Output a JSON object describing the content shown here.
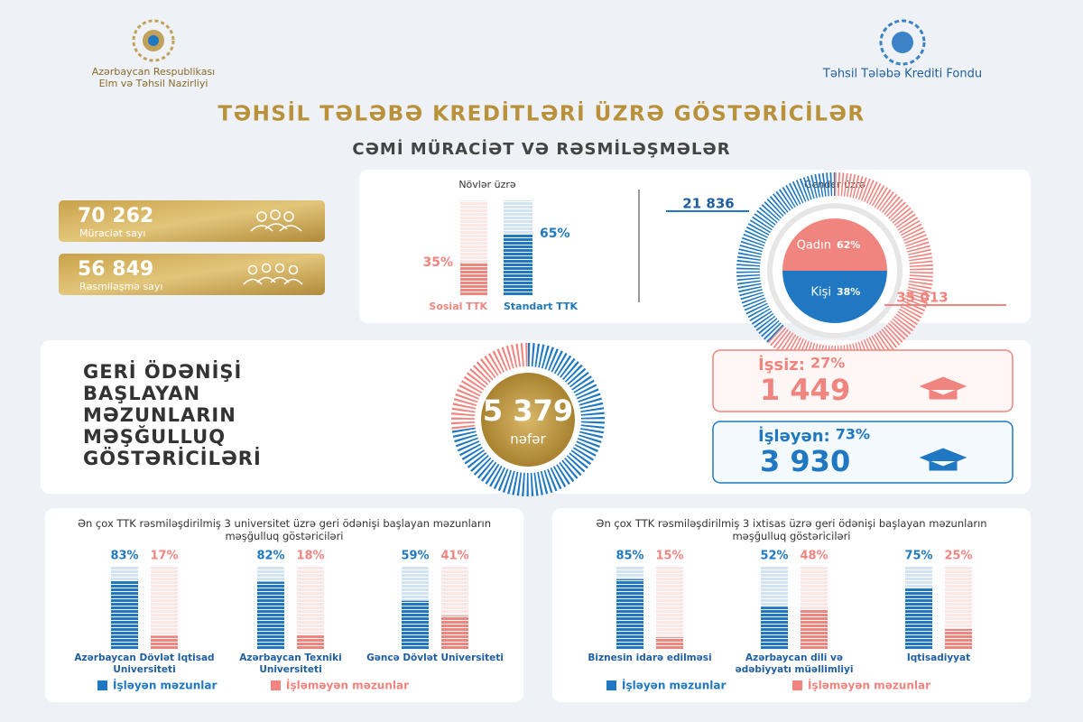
{
  "header": {
    "left_org": [
      "Azərbaycan Respublikası",
      "Elm və Təhsil Nazirliyi"
    ],
    "right_org": "Təhsil Tələbə Krediti Fondu",
    "title": "TƏHSİL TƏLƏBƏ KREDİTLƏRİ ÜZRƏ GÖSTƏRİCİLƏR",
    "subtitle": "CƏMİ MÜRACİƏT VƏ RƏSMİLƏŞMƏLƏR"
  },
  "stats": [
    {
      "value": "70 262",
      "label": "Müraciət sayı"
    },
    {
      "value": "56 849",
      "label": "Rəsmiləşmə sayı"
    }
  ],
  "chart_data": [
    {
      "type": "bar",
      "title": "Növlər üzrə",
      "categories": [
        "Sosial TTK",
        "Standart TTK"
      ],
      "values": [
        35,
        65
      ],
      "value_labels": [
        "35%",
        "65%"
      ],
      "colors": [
        "#f0847f",
        "#1f78c1"
      ],
      "ylim": [
        0,
        100
      ]
    },
    {
      "type": "donut",
      "title": "Gender üzrə",
      "categories": [
        "Qadın",
        "Kişi"
      ],
      "values": [
        62,
        38
      ],
      "value_labels": [
        "62%",
        "38%"
      ],
      "count_labels": [
        "35 013",
        "21 836"
      ],
      "colors": [
        "#f0847f",
        "#1f78c1"
      ]
    },
    {
      "type": "gauge",
      "title": [
        "GERİ ÖDƏNİŞİ",
        "BAŞLAYAN",
        "MƏZUNLARIN",
        "MƏŞĞULLUQ",
        "GÖSTƏRİCİLƏRİ"
      ],
      "total_label": "5 379",
      "unit": "nəfər",
      "categories": [
        "İşsiz:",
        "İşləyən:"
      ],
      "values": [
        27,
        73
      ],
      "value_labels": [
        "27%",
        "73%"
      ],
      "count_labels": [
        "1 449",
        "3 930"
      ],
      "colors": [
        "#f0847f",
        "#1f78c1"
      ]
    },
    {
      "type": "bar",
      "title": "Ən çox TTK rəsmiləşdirilmiş 3 universitet üzrə geri ödənişi başlayan məzunların məşğulluq göstəriciləri",
      "categories": [
        "Azərbaycan Dövlət İqtisad Universiteti",
        "Azərbaycan Texniki Universiteti",
        "Gəncə Dövlət Universiteti"
      ],
      "ylim": [
        0,
        100
      ],
      "series": [
        {
          "name": "İşləyən məzunlar",
          "color": "#1f78c1",
          "values": [
            83,
            82,
            59
          ],
          "value_labels": [
            "83%",
            "82%",
            "59%"
          ]
        },
        {
          "name": "İşləməyən məzunlar",
          "color": "#f0847f",
          "values": [
            17,
            18,
            41
          ],
          "value_labels": [
            "17%",
            "18%",
            "41%"
          ]
        }
      ]
    },
    {
      "type": "bar",
      "title": "Ən çox TTK rəsmiləşdirilmiş 3 ixtisas üzrə geri ödənişi başlayan məzunların məşğulluq göstəriciləri",
      "categories": [
        "Biznesin idarə edilməsi",
        "Azərbaycan dili və ədəbiyyatı müəllimliyi",
        "İqtisadiyyat"
      ],
      "ylim": [
        0,
        100
      ],
      "series": [
        {
          "name": "İşləyən məzunlar",
          "color": "#1f78c1",
          "values": [
            85,
            52,
            75
          ],
          "value_labels": [
            "85%",
            "52%",
            "75%"
          ]
        },
        {
          "name": "İşləməyən məzunlar",
          "color": "#f0847f",
          "values": [
            15,
            48,
            25
          ],
          "value_labels": [
            "15%",
            "48%",
            "25%"
          ]
        }
      ]
    }
  ]
}
